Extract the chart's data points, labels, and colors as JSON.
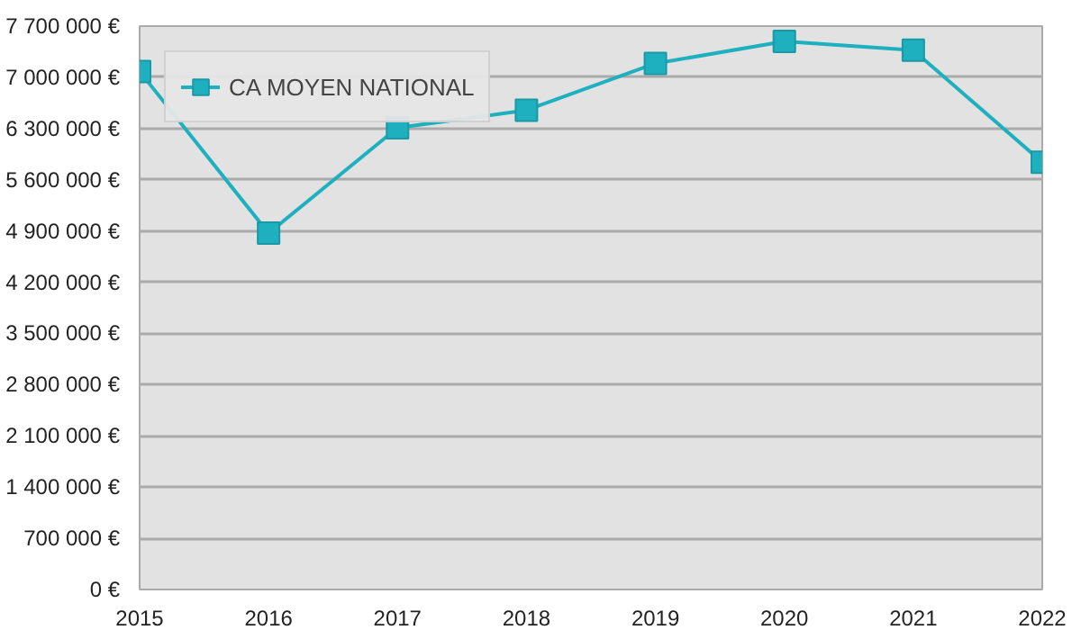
{
  "chart_data": {
    "type": "line",
    "x": [
      2015,
      2016,
      2017,
      2018,
      2019,
      2020,
      2021,
      2022
    ],
    "series": [
      {
        "name": "CA MOYEN NATIONAL",
        "color": "#1fb0c0",
        "values": [
          7080000,
          4870000,
          6310000,
          6550000,
          7190000,
          7490000,
          7370000,
          5840000
        ]
      }
    ],
    "xlim": [
      2015,
      2022
    ],
    "xticks": [
      2015,
      2016,
      2017,
      2018,
      2019,
      2020,
      2021,
      2022
    ],
    "ylim": [
      0,
      7700000
    ],
    "yticks": [
      {
        "value": 0,
        "label": "0 €"
      },
      {
        "value": 700000,
        "label": "700 000 €"
      },
      {
        "value": 1400000,
        "label": "1 400 000 €"
      },
      {
        "value": 2100000,
        "label": "2 100 000 €"
      },
      {
        "value": 2800000,
        "label": "2 800 000 €"
      },
      {
        "value": 3500000,
        "label": "3 500 000 €"
      },
      {
        "value": 4200000,
        "label": "4 200 000 €"
      },
      {
        "value": 4900000,
        "label": "4 900 000 €"
      },
      {
        "value": 5600000,
        "label": "5 600 000 €"
      },
      {
        "value": 6300000,
        "label": "6 300 000 €"
      },
      {
        "value": 7000000,
        "label": "7 000 000 €"
      },
      {
        "value": 7700000,
        "label": "7 700 000 €"
      }
    ],
    "grid": "y",
    "legend": "top left",
    "marker": "square",
    "line_style": "solid"
  }
}
